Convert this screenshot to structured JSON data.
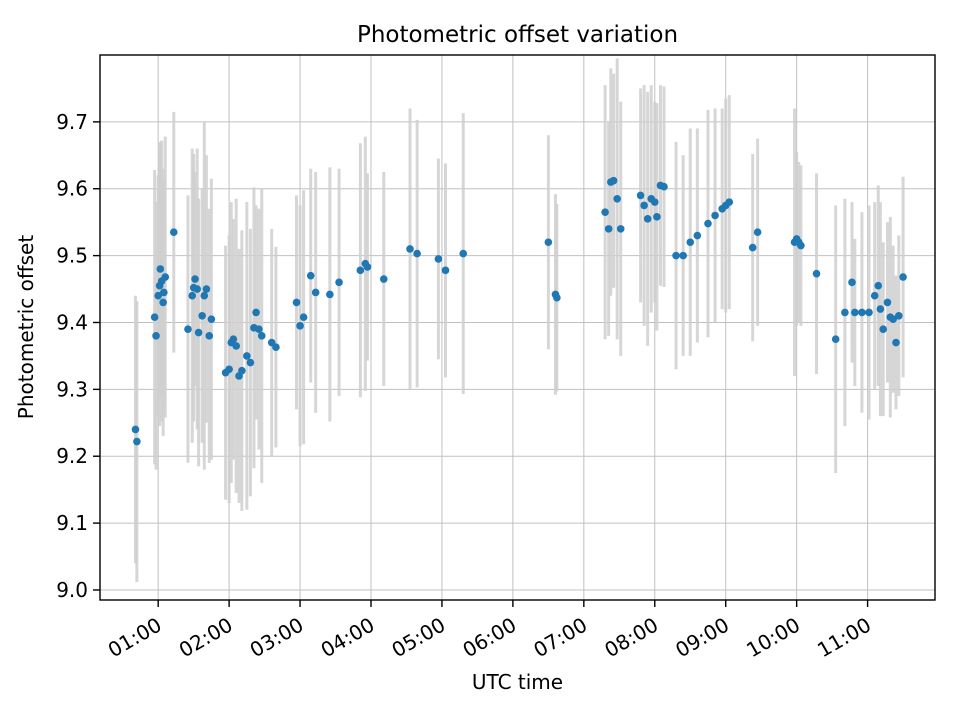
{
  "chart_data": {
    "type": "scatter",
    "title": "Photometric offset variation",
    "xlabel": "UTC time",
    "ylabel": "Photometric offset",
    "grid": true,
    "xlim": [
      0.18,
      11.95
    ],
    "ylim": [
      8.985,
      9.8
    ],
    "x_tick_hours": [
      1,
      2,
      3,
      4,
      5,
      6,
      7,
      8,
      9,
      10,
      11
    ],
    "x_tick_labels": [
      "01:00",
      "02:00",
      "03:00",
      "04:00",
      "05:00",
      "06:00",
      "07:00",
      "08:00",
      "09:00",
      "10:00",
      "11:00"
    ],
    "y_tick_values": [
      9.0,
      9.1,
      9.2,
      9.3,
      9.4,
      9.5,
      9.6,
      9.7
    ],
    "y_tick_labels": [
      "9.0",
      "9.1",
      "9.2",
      "9.3",
      "9.4",
      "9.5",
      "9.6",
      "9.7"
    ],
    "marker_color": "#1f77b4",
    "errorbar_color": "#cfcfcf",
    "grid_color": "#c0c0c0",
    "frame_color": "#000000",
    "background_color": "#ffffff",
    "point_format": [
      "utc_hour",
      "offset",
      "error"
    ],
    "points": [
      [
        0.68,
        9.24,
        0.2
      ],
      [
        0.7,
        9.222,
        0.21
      ],
      [
        0.95,
        9.408,
        0.22
      ],
      [
        0.97,
        9.38,
        0.2
      ],
      [
        1.0,
        9.44,
        0.18
      ],
      [
        1.02,
        9.455,
        0.21
      ],
      [
        1.03,
        9.48,
        0.19
      ],
      [
        1.05,
        9.462,
        0.21
      ],
      [
        1.07,
        9.43,
        0.2
      ],
      [
        1.08,
        9.445,
        0.17
      ],
      [
        1.1,
        9.468,
        0.21
      ],
      [
        1.22,
        9.535,
        0.18
      ],
      [
        1.42,
        9.39,
        0.2
      ],
      [
        1.48,
        9.44,
        0.22
      ],
      [
        1.5,
        9.452,
        0.2
      ],
      [
        1.52,
        9.465,
        0.16
      ],
      [
        1.55,
        9.45,
        0.21
      ],
      [
        1.57,
        9.385,
        0.2
      ],
      [
        1.62,
        9.41,
        0.19
      ],
      [
        1.65,
        9.44,
        0.26
      ],
      [
        1.68,
        9.45,
        0.2
      ],
      [
        1.72,
        9.38,
        0.19
      ],
      [
        1.75,
        9.405,
        0.21
      ],
      [
        1.95,
        9.325,
        0.19
      ],
      [
        2.0,
        9.33,
        0.2
      ],
      [
        2.03,
        9.37,
        0.21
      ],
      [
        2.06,
        9.375,
        0.18
      ],
      [
        2.1,
        9.365,
        0.22
      ],
      [
        2.14,
        9.32,
        0.19
      ],
      [
        2.18,
        9.328,
        0.21
      ],
      [
        2.25,
        9.35,
        0.23
      ],
      [
        2.3,
        9.34,
        0.2
      ],
      [
        2.35,
        9.392,
        0.21
      ],
      [
        2.38,
        9.415,
        0.16
      ],
      [
        2.42,
        9.39,
        0.18
      ],
      [
        2.46,
        9.38,
        0.22
      ],
      [
        2.6,
        9.37,
        0.17
      ],
      [
        2.66,
        9.363,
        0.15
      ],
      [
        2.95,
        9.43,
        0.16
      ],
      [
        3.0,
        9.395,
        0.18
      ],
      [
        3.05,
        9.408,
        0.19
      ],
      [
        3.15,
        9.47,
        0.16
      ],
      [
        3.22,
        9.445,
        0.18
      ],
      [
        3.42,
        9.442,
        0.19
      ],
      [
        3.55,
        9.46,
        0.17
      ],
      [
        3.85,
        9.478,
        0.19
      ],
      [
        3.92,
        9.488,
        0.19
      ],
      [
        3.95,
        9.483,
        0.14
      ],
      [
        4.18,
        9.465,
        0.16
      ],
      [
        4.55,
        9.51,
        0.21
      ],
      [
        4.65,
        9.503,
        0.2
      ],
      [
        4.95,
        9.495,
        0.15
      ],
      [
        5.05,
        9.478,
        0.16
      ],
      [
        5.3,
        9.503,
        0.21
      ],
      [
        6.5,
        9.52,
        0.16
      ],
      [
        6.6,
        9.442,
        0.15
      ],
      [
        6.62,
        9.437,
        0.14
      ],
      [
        7.3,
        9.565,
        0.19
      ],
      [
        7.35,
        9.54,
        0.16
      ],
      [
        7.38,
        9.61,
        0.17
      ],
      [
        7.42,
        9.612,
        0.16
      ],
      [
        7.47,
        9.585,
        0.21
      ],
      [
        7.52,
        9.54,
        0.19
      ],
      [
        7.8,
        9.59,
        0.16
      ],
      [
        7.85,
        9.575,
        0.18
      ],
      [
        7.9,
        9.555,
        0.19
      ],
      [
        7.95,
        9.585,
        0.17
      ],
      [
        8.0,
        9.58,
        0.15
      ],
      [
        8.03,
        9.558,
        0.17
      ],
      [
        8.08,
        9.605,
        0.15
      ],
      [
        8.13,
        9.603,
        0.15
      ],
      [
        8.3,
        9.5,
        0.17
      ],
      [
        8.4,
        9.5,
        0.15
      ],
      [
        8.5,
        9.52,
        0.17
      ],
      [
        8.6,
        9.53,
        0.16
      ],
      [
        8.75,
        9.548,
        0.17
      ],
      [
        8.85,
        9.56,
        0.16
      ],
      [
        8.95,
        9.57,
        0.15
      ],
      [
        9.0,
        9.575,
        0.16
      ],
      [
        9.05,
        9.58,
        0.16
      ],
      [
        9.38,
        9.512,
        0.14
      ],
      [
        9.45,
        9.535,
        0.14
      ],
      [
        9.97,
        9.52,
        0.2
      ],
      [
        10.0,
        9.525,
        0.13
      ],
      [
        10.03,
        9.52,
        0.12
      ],
      [
        10.06,
        9.515,
        0.12
      ],
      [
        10.28,
        9.473,
        0.15
      ],
      [
        10.55,
        9.375,
        0.2
      ],
      [
        10.68,
        9.415,
        0.17
      ],
      [
        10.78,
        9.46,
        0.12
      ],
      [
        10.82,
        9.415,
        0.11
      ],
      [
        10.92,
        9.415,
        0.15
      ],
      [
        11.02,
        9.415,
        0.16
      ],
      [
        11.1,
        9.44,
        0.14
      ],
      [
        11.15,
        9.455,
        0.15
      ],
      [
        11.18,
        9.42,
        0.16
      ],
      [
        11.22,
        9.39,
        0.13
      ],
      [
        11.28,
        9.43,
        0.12
      ],
      [
        11.32,
        9.408,
        0.15
      ],
      [
        11.36,
        9.405,
        0.11
      ],
      [
        11.4,
        9.37,
        0.1
      ],
      [
        11.44,
        9.41,
        0.12
      ],
      [
        11.5,
        9.468,
        0.15
      ]
    ]
  }
}
